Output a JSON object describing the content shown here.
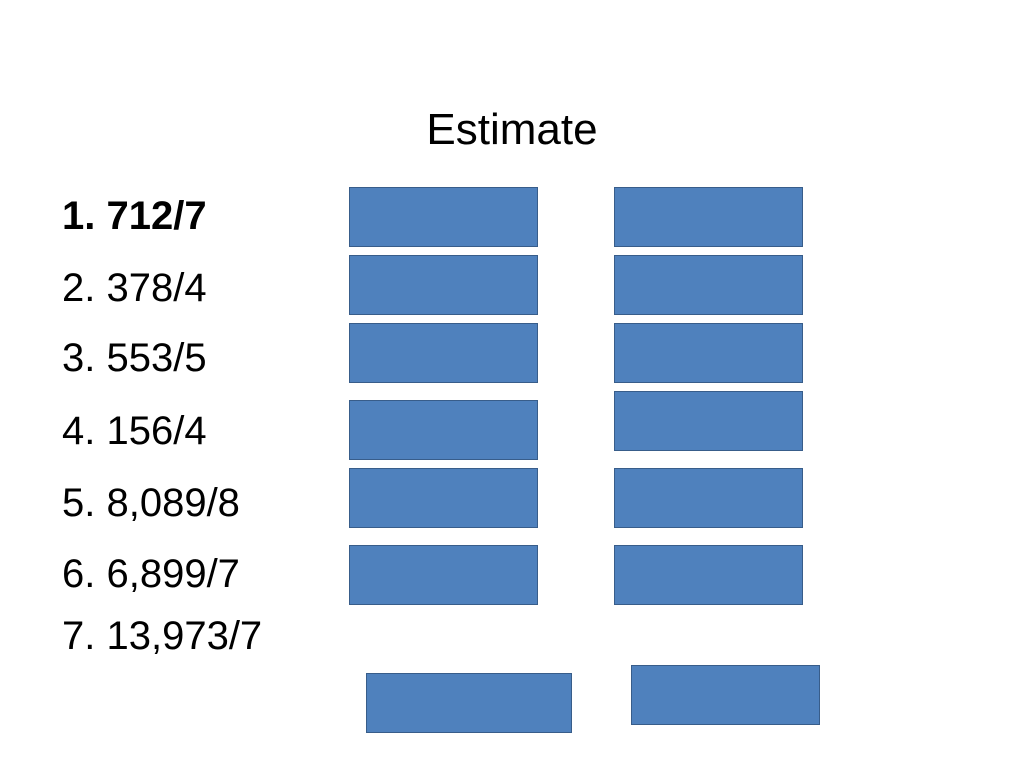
{
  "title": "Estimate",
  "items": [
    "1. 712/7",
    "2. 378/4",
    "3. 553/5",
    "4. 156/4",
    "5. 8,089/8",
    "6. 6,899/7",
    "7. 13,973/7"
  ]
}
